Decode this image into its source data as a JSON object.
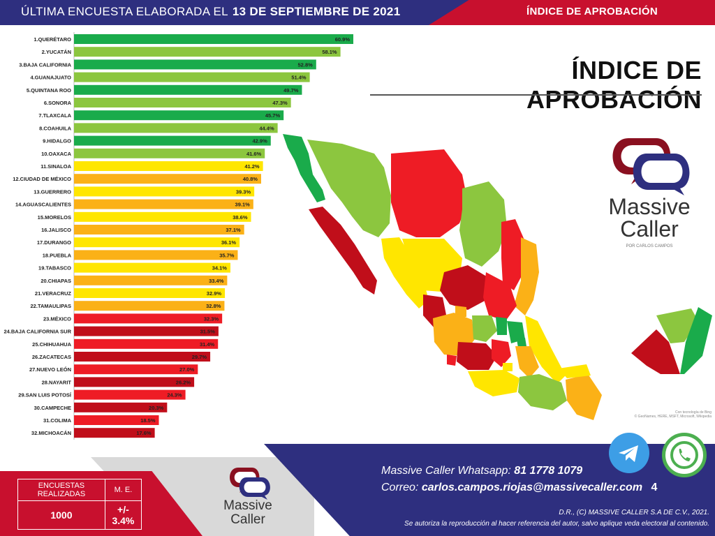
{
  "header": {
    "date_prefix": "ÚLTIMA ENCUESTA ELABORADA EL",
    "date": "13 DE SEPTIEMBRE DE 2021",
    "title": "ÍNDICE DE APROBACIÓN"
  },
  "main_title": "ÍNDICE DE APROBACIÓN",
  "logo": {
    "name_line1": "Massive",
    "name_line2": "Caller",
    "tagline": "POR CARLOS CAMPOS"
  },
  "map": {
    "credit_line1": "Con tecnología de Bing",
    "credit_line2": "© GeoNames, HERE, MSFT, Microsoft, Wikipedia"
  },
  "survey": {
    "surveys_label": "ENCUESTAS REALIZADAS",
    "surveys_value": "1000",
    "margin_label": "M. E.",
    "margin_value": "+/- 3.4%"
  },
  "contact": {
    "whatsapp_label": "Massive Caller Whatsapp:",
    "whatsapp_number": "81 1778 1079",
    "email_label": "Correo:",
    "email": "carlos.campos.riojas@massivecaller.com",
    "page_number": "4"
  },
  "legal": {
    "line1": "D.R., (C) MASSIVE CALLER S.A DE C.V., 2021.",
    "line2": "Se autoriza la reproducción al hacer referencia del autor, salvo aplique veda electoral al contenido."
  },
  "colors": {
    "dark_green": "#1aab4b",
    "light_green": "#8cc63f",
    "yellow": "#ffe600",
    "orange": "#fbb117",
    "red": "#ee1c25",
    "dark_red": "#c00e1a",
    "navy": "#2e2f7f",
    "header_red": "#c8102e"
  },
  "chart_data": {
    "type": "bar",
    "orientation": "horizontal",
    "xlim": [
      0,
      70
    ],
    "grid": false,
    "categories": [
      "1.QUERÉTARO",
      "2.YUCATÁN",
      "3.BAJA CALIFORNIA",
      "4.GUANAJUATO",
      "5.QUINTANA ROO",
      "6.SONORA",
      "7.TLAXCALA",
      "8.COAHUILA",
      "9.HIDALGO",
      "10.OAXACA",
      "11.SINALOA",
      "12.CIUDAD DE MÉXICO",
      "13.GUERRERO",
      "14.AGUASCALIENTES",
      "15.MORELOS",
      "16.JALISCO",
      "17.DURANGO",
      "18.PUEBLA",
      "19.TABASCO",
      "20.CHIAPAS",
      "21.VERACRUZ",
      "22.TAMAULIPAS",
      "23.MÉXICO",
      "24.BAJA CALIFORNIA SUR",
      "25.CHIHUAHUA",
      "26.ZACATECAS",
      "27.NUEVO LEÓN",
      "28.NAYARIT",
      "29.SAN LUIS POTOSÍ",
      "30.CAMPECHE",
      "31.COLIMA",
      "32.MICHOACÁN"
    ],
    "values": [
      60.9,
      58.1,
      52.8,
      51.4,
      49.7,
      47.3,
      45.7,
      44.4,
      42.9,
      41.6,
      41.2,
      40.8,
      39.3,
      39.1,
      38.6,
      37.1,
      36.1,
      35.7,
      34.1,
      33.4,
      32.9,
      32.8,
      32.3,
      31.5,
      31.4,
      29.7,
      27.0,
      26.2,
      24.3,
      20.3,
      18.5,
      17.6
    ],
    "labels": [
      "60.9%",
      "58.1%",
      "52.8%",
      "51.4%",
      "49.7%",
      "47.3%",
      "45.7%",
      "44.4%",
      "42.9%",
      "41.6%",
      "41.2%",
      "40.8%",
      "39.3%",
      "39.1%",
      "38.6%",
      "37.1%",
      "36.1%",
      "35.7%",
      "34.1%",
      "33.4%",
      "32.9%",
      "32.8%",
      "32.3%",
      "31.5%",
      "31.4%",
      "29.7%",
      "27.0%",
      "26.2%",
      "24.3%",
      "20.3%",
      "18.5%",
      "17.6%"
    ],
    "bar_colors": [
      "#1aab4b",
      "#8cc63f",
      "#1aab4b",
      "#8cc63f",
      "#1aab4b",
      "#8cc63f",
      "#1aab4b",
      "#8cc63f",
      "#1aab4b",
      "#8cc63f",
      "#ffe600",
      "#fbb117",
      "#ffe600",
      "#fbb117",
      "#ffe600",
      "#fbb117",
      "#ffe600",
      "#fbb117",
      "#ffe600",
      "#fbb117",
      "#ffe600",
      "#fbb117",
      "#ee1c25",
      "#c00e1a",
      "#ee1c25",
      "#c00e1a",
      "#ee1c25",
      "#c00e1a",
      "#ee1c25",
      "#c00e1a",
      "#ee1c25",
      "#c00e1a"
    ]
  }
}
